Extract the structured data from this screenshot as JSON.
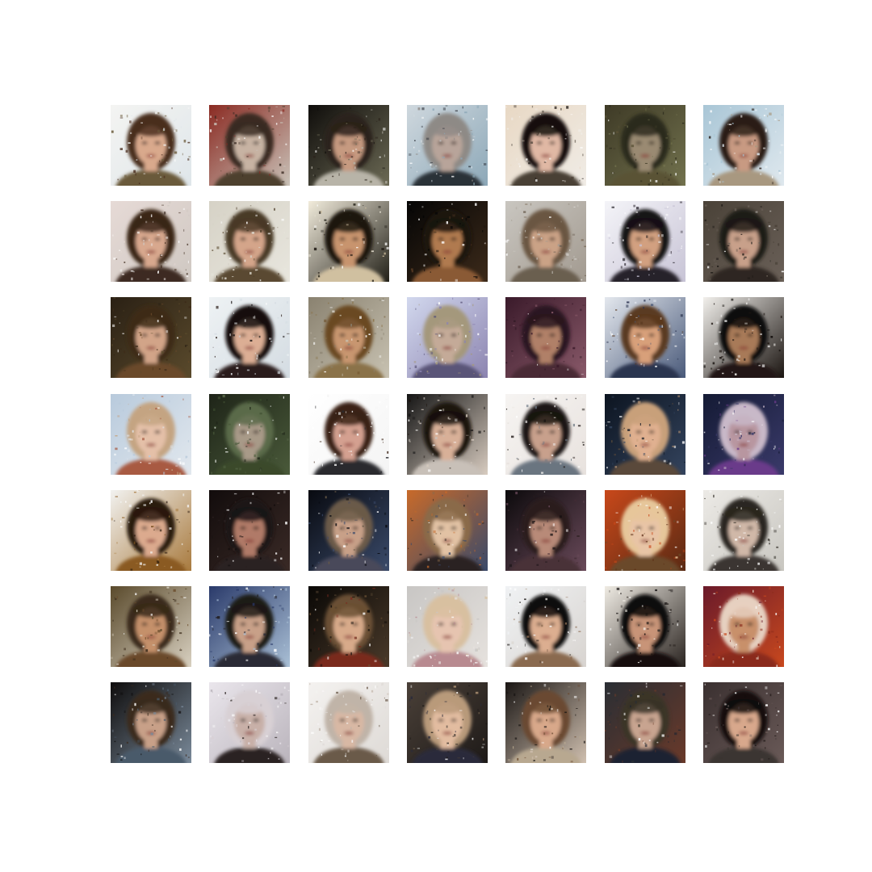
{
  "figure": {
    "rows": 7,
    "cols": 7,
    "background": "#ffffff",
    "tiles": [
      {
        "bg": [
          "#f4f4f2",
          "#dfe6ea"
        ],
        "hair": "#4a2e1f",
        "skin": "#d9a98c",
        "cloth": "#6b5a3a"
      },
      {
        "bg": [
          "#8a2a22",
          "#c9c2b8"
        ],
        "hair": "#3a2a22",
        "skin": "#c7b3a3",
        "cloth": "#4e3f2e"
      },
      {
        "bg": [
          "#0f0d0b",
          "#6c6a55"
        ],
        "hair": "#2b211a",
        "skin": "#c69a80",
        "cloth": "#b8b4a8"
      },
      {
        "bg": [
          "#cfd8de",
          "#8da8b8"
        ],
        "hair": "#8e8a86",
        "skin": "#b8a49a",
        "cloth": "#2c3038"
      },
      {
        "bg": [
          "#e8d8c4",
          "#f0ece6"
        ],
        "hair": "#140f0c",
        "skin": "#e0b8a4",
        "cloth": "#4a4036"
      },
      {
        "bg": [
          "#3e3a26",
          "#72724e"
        ],
        "hair": "#2c2a1c",
        "skin": "#9a8a72",
        "cloth": "#5a5236"
      },
      {
        "bg": [
          "#a9c6d6",
          "#dfe8ee"
        ],
        "hair": "#2a1f18",
        "skin": "#c89a82",
        "cloth": "#a89880"
      },
      {
        "bg": [
          "#e6dad6",
          "#cfc8c2"
        ],
        "hair": "#3a2618",
        "skin": "#d8a88e",
        "cloth": "#3c2c24"
      },
      {
        "bg": [
          "#d6d2c6",
          "#e8e6de"
        ],
        "hair": "#4a3a26",
        "skin": "#d4a58a",
        "cloth": "#5a4a30"
      },
      {
        "bg": [
          "#f2ecdc",
          "#222018"
        ],
        "hair": "#1c1610",
        "skin": "#c8946e",
        "cloth": "#d0c0a0"
      },
      {
        "bg": [
          "#050505",
          "#3c2a1a"
        ],
        "hair": "#1a140e",
        "skin": "#b07a50",
        "cloth": "#8a5a34"
      },
      {
        "bg": [
          "#c9c6c0",
          "#a29a90"
        ],
        "hair": "#6a5642",
        "skin": "#caa286",
        "cloth": "#6a5e50"
      },
      {
        "bg": [
          "#f4f4f8",
          "#c8c4d6"
        ],
        "hair": "#151218",
        "skin": "#d2a080",
        "cloth": "#26202a"
      },
      {
        "bg": [
          "#4a4238",
          "#6a6058"
        ],
        "hair": "#1e1a16",
        "skin": "#c8a08a",
        "cloth": "#2e2824"
      },
      {
        "bg": [
          "#2a2014",
          "#5a4a2c"
        ],
        "hair": "#3c2a18",
        "skin": "#d2a488",
        "cloth": "#6a4a2a"
      },
      {
        "bg": [
          "#eef2f4",
          "#d4dce2"
        ],
        "hair": "#141010",
        "skin": "#dcae94",
        "cloth": "#2c1e1a"
      },
      {
        "bg": [
          "#8a8270",
          "#c8c2b2"
        ],
        "hair": "#6a4a24",
        "skin": "#c89670",
        "cloth": "#8a7248"
      },
      {
        "bg": [
          "#d2d8ee",
          "#8c84b0"
        ],
        "hair": "#a4987c",
        "skin": "#c4aa98",
        "cloth": "#5a5478"
      },
      {
        "bg": [
          "#3a1a2a",
          "#8a5a6a"
        ],
        "hair": "#2a1620",
        "skin": "#b08068",
        "cloth": "#4a2a34"
      },
      {
        "bg": [
          "#e4e8ee",
          "#4a5a7a"
        ],
        "hair": "#5a3a20",
        "skin": "#d8a07a",
        "cloth": "#2c3450"
      },
      {
        "bg": [
          "#f2f0ec",
          "#1a1410"
        ],
        "hair": "#0e0a08",
        "skin": "#a87a58",
        "cloth": "#201814"
      },
      {
        "bg": [
          "#b8cadc",
          "#e2e8ee"
        ],
        "hair": "#c4a482",
        "skin": "#e4c0a8",
        "cloth": "#a85a42"
      },
      {
        "bg": [
          "#1e2418",
          "#4a5a3a"
        ],
        "hair": "#5a6a4a",
        "skin": "#a89a88",
        "cloth": "#3a4a2c"
      },
      {
        "bg": [
          "#ffffff",
          "#f4f4f4"
        ],
        "hair": "#3a2214",
        "skin": "#d4a090",
        "cloth": "#2a2a2e"
      },
      {
        "bg": [
          "#141414",
          "#d8ccc0"
        ],
        "hair": "#1a120c",
        "skin": "#d8b098",
        "cloth": "#c8c0b8"
      },
      {
        "bg": [
          "#f6f4f2",
          "#e8e2de"
        ],
        "hair": "#1a1412",
        "skin": "#c8a08c",
        "cloth": "#6a7480"
      },
      {
        "bg": [
          "#0c1420",
          "#34445e"
        ],
        "hair": "#c8a07a",
        "skin": "#e0b090",
        "cloth": "#5a4a3a"
      },
      {
        "bg": [
          "#141a34",
          "#3a3a6a"
        ],
        "hair": "#c8b8c8",
        "skin": "#b896a0",
        "cloth": "#6a3a8a"
      },
      {
        "bg": [
          "#f2f2f0",
          "#a87a3e"
        ],
        "hair": "#2a1a0e",
        "skin": "#dcaa8e",
        "cloth": "#8a5a22"
      },
      {
        "bg": [
          "#120c0c",
          "#3a2a26"
        ],
        "hair": "#1a1414",
        "skin": "#b07a68",
        "cloth": "#2a2020"
      },
      {
        "bg": [
          "#080a10",
          "#3a4a6a"
        ],
        "hair": "#6a5a48",
        "skin": "#c8a088",
        "cloth": "#4a4a5a"
      },
      {
        "bg": [
          "#c86a2a",
          "#3a4a6a"
        ],
        "hair": "#8a6a4a",
        "skin": "#e2c2a4",
        "cloth": "#2a2420"
      },
      {
        "bg": [
          "#0c0a0c",
          "#6a4a5a"
        ],
        "hair": "#2a1e1e",
        "skin": "#b88a78",
        "cloth": "#4a3038"
      },
      {
        "bg": [
          "#c8481a",
          "#5a2a14"
        ],
        "hair": "#e6c69a",
        "skin": "#e8c4a6",
        "cloth": "#6a4a2a"
      },
      {
        "bg": [
          "#eceae6",
          "#c8c6c0"
        ],
        "hair": "#2a2620",
        "skin": "#d0b8a8",
        "cloth": "#3a3630"
      },
      {
        "bg": [
          "#5a4a2c",
          "#d8d0c0"
        ],
        "hair": "#3a2a1a",
        "skin": "#c4906a",
        "cloth": "#6a4a2a"
      },
      {
        "bg": [
          "#2a3a6a",
          "#aac0d6"
        ],
        "hair": "#1e1a18",
        "skin": "#c8a088",
        "cloth": "#2a2a34"
      },
      {
        "bg": [
          "#0a0806",
          "#4a3a2a"
        ],
        "hair": "#6a5034",
        "skin": "#d8aa8a",
        "cloth": "#7a2a1e"
      },
      {
        "bg": [
          "#c8c6c4",
          "#e6e2de"
        ],
        "hair": "#d8c0a0",
        "skin": "#e6c4b0",
        "cloth": "#b88a90"
      },
      {
        "bg": [
          "#f0f2f4",
          "#d8d4d0"
        ],
        "hair": "#0e0a08",
        "skin": "#dcae90",
        "cloth": "#8a6a50"
      },
      {
        "bg": [
          "#f0ece4",
          "#2a2420"
        ],
        "hair": "#0c0808",
        "skin": "#c89478",
        "cloth": "#141010"
      },
      {
        "bg": [
          "#6a1a2a",
          "#c8481e"
        ],
        "hair": "#e6d0c0",
        "skin": "#c8906a",
        "cloth": "#8a2a1a"
      },
      {
        "bg": [
          "#0e0c0c",
          "#7a8a9a"
        ],
        "hair": "#3a2a1e",
        "skin": "#c8a088",
        "cloth": "#4a5a6a"
      },
      {
        "bg": [
          "#eae6ec",
          "#bab4bc"
        ],
        "hair": "#d8d0d4",
        "skin": "#c8b0a8",
        "cloth": "#2a2220"
      },
      {
        "bg": [
          "#f4f2f0",
          "#dedad6"
        ],
        "hair": "#c0b4a8",
        "skin": "#d8b8a4",
        "cloth": "#6a5a4a"
      },
      {
        "bg": [
          "#4a4038",
          "#1e1a18"
        ],
        "hair": "#b89a7a",
        "skin": "#e2bca0",
        "cloth": "#2a2a3a"
      },
      {
        "bg": [
          "#1a1614",
          "#d0c0b0"
        ],
        "hair": "#6a4a30",
        "skin": "#d8a88a",
        "cloth": "#b8a890"
      },
      {
        "bg": [
          "#2a2e34",
          "#6a3a2a"
        ],
        "hair": "#3a3428",
        "skin": "#c8a490",
        "cloth": "#1e2430"
      },
      {
        "bg": [
          "#3a3030",
          "#6a5a58"
        ],
        "hair": "#120c0a",
        "skin": "#d8a88c",
        "cloth": "#3a3430"
      }
    ]
  }
}
